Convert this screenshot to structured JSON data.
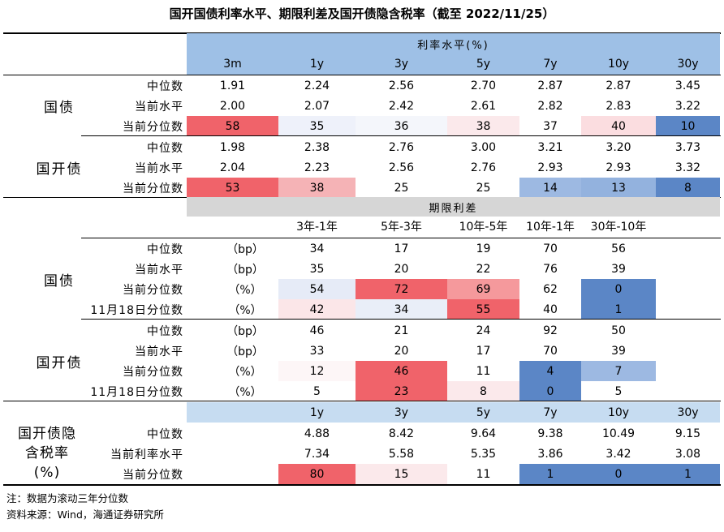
{
  "title": "国开国债利率水平、期限利差及国开债隐含税率（截至 2022/11/25）",
  "colors": {
    "red_strong": "#f0636a",
    "red_mid": "#f5999c",
    "red_light": "#fbdde0",
    "blue_strong": "#5b86c6",
    "blue_mid": "#8fb0de",
    "blue_light": "#dde6f6",
    "header_blue": "#9ec0e6",
    "header_gray": "#d6d6d6"
  },
  "section1": {
    "header": "利率水平(%)",
    "columns": [
      "3m",
      "1y",
      "3y",
      "5y",
      "7y",
      "10y",
      "30y"
    ],
    "groups": [
      {
        "name": "国债",
        "rows": [
          {
            "label": "中位数",
            "values": [
              "1.91",
              "2.24",
              "2.56",
              "2.70",
              "2.87",
              "2.87",
              "3.45"
            ],
            "fills": [
              "",
              "",
              "",
              "",
              "",
              "",
              ""
            ]
          },
          {
            "label": "当前水平",
            "values": [
              "2.00",
              "2.07",
              "2.42",
              "2.61",
              "2.82",
              "2.83",
              "3.22"
            ],
            "fills": [
              "",
              "",
              "",
              "",
              "",
              "",
              ""
            ]
          },
          {
            "label": "当前分位数",
            "values": [
              "58",
              "35",
              "36",
              "38",
              "37",
              "40",
              "10"
            ],
            "fills": [
              "#f0636a",
              "#eef1fa",
              "#f4f6fb",
              "#fbe9eb",
              "#ffffff",
              "#fbdde0",
              "#5b86c6"
            ]
          }
        ]
      },
      {
        "name": "国开债",
        "rows": [
          {
            "label": "中位数",
            "values": [
              "1.98",
              "2.38",
              "2.76",
              "3.00",
              "3.21",
              "3.20",
              "3.73"
            ],
            "fills": [
              "",
              "",
              "",
              "",
              "",
              "",
              ""
            ]
          },
          {
            "label": "当前水平",
            "values": [
              "2.04",
              "2.23",
              "2.56",
              "2.76",
              "2.93",
              "2.93",
              "3.32"
            ],
            "fills": [
              "",
              "",
              "",
              "",
              "",
              "",
              ""
            ]
          },
          {
            "label": "当前分位数",
            "values": [
              "53",
              "38",
              "25",
              "25",
              "14",
              "13",
              "8"
            ],
            "fills": [
              "#f0636a",
              "#f5b3b6",
              "#ffffff",
              "#ffffff",
              "#9db9e2",
              "#93b2de",
              "#5b86c6"
            ]
          }
        ]
      }
    ]
  },
  "section2": {
    "header": "期限利差",
    "columns": [
      "3年-1年",
      "5年-3年",
      "10年-5年",
      "10年-1年",
      "30年-10年"
    ],
    "groups": [
      {
        "name": "国债",
        "rows": [
          {
            "label": "中位数",
            "unit": "（bp）",
            "values": [
              "34",
              "17",
              "19",
              "70",
              "56"
            ],
            "fills": [
              "",
              "",
              "",
              "",
              ""
            ]
          },
          {
            "label": "当前水平",
            "unit": "（bp）",
            "values": [
              "35",
              "20",
              "22",
              "76",
              "39"
            ],
            "fills": [
              "",
              "",
              "",
              "",
              ""
            ]
          },
          {
            "label": "当前分位数",
            "unit": "（%）",
            "values": [
              "54",
              "72",
              "69",
              "62",
              "0"
            ],
            "fills": [
              "#e6ebf7",
              "#f0636a",
              "#f5999c",
              "#ffffff",
              "#5b86c6"
            ]
          },
          {
            "label": "11月18日分位数",
            "unit": "（%）",
            "values": [
              "42",
              "34",
              "55",
              "40",
              "1"
            ],
            "fills": [
              "#fbe6e8",
              "#e9eef8",
              "#f0636a",
              "#ffffff",
              "#5b86c6"
            ]
          }
        ]
      },
      {
        "name": "国开债",
        "rows": [
          {
            "label": "中位数",
            "unit": "（bp）",
            "values": [
              "46",
              "21",
              "24",
              "92",
              "50"
            ],
            "fills": [
              "",
              "",
              "",
              "",
              ""
            ]
          },
          {
            "label": "当前水平",
            "unit": "（bp）",
            "values": [
              "33",
              "20",
              "17",
              "70",
              "39"
            ],
            "fills": [
              "",
              "",
              "",
              "",
              ""
            ]
          },
          {
            "label": "当前分位数",
            "unit": "（%）",
            "values": [
              "12",
              "46",
              "11",
              "4",
              "7"
            ],
            "fills": [
              "#fdf6f7",
              "#f0636a",
              "#ffffff",
              "#5b86c6",
              "#9db9e2"
            ]
          },
          {
            "label": "11月18日分位数",
            "unit": "（%）",
            "values": [
              "5",
              "23",
              "8",
              "0",
              "5"
            ],
            "fills": [
              "#ffffff",
              "#f0636a",
              "#fbe9eb",
              "#5b86c6",
              "#ffffff"
            ]
          }
        ]
      }
    ]
  },
  "section3": {
    "group_name_lines": [
      "国开债隐",
      "含税率",
      "(%)"
    ],
    "columns": [
      "1y",
      "3y",
      "5y",
      "7y",
      "10y",
      "30y"
    ],
    "rows": [
      {
        "label": "中位数",
        "values": [
          "4.88",
          "8.42",
          "9.64",
          "9.38",
          "10.49",
          "9.15"
        ],
        "fills": [
          "",
          "",
          "",
          "",
          "",
          ""
        ]
      },
      {
        "label": "当前利率水平",
        "values": [
          "7.34",
          "5.58",
          "5.35",
          "3.86",
          "3.42",
          "3.08"
        ],
        "fills": [
          "",
          "",
          "",
          "",
          "",
          ""
        ]
      },
      {
        "label": "当前分位数",
        "values": [
          "80",
          "15",
          "11",
          "1",
          "0",
          "1"
        ],
        "fills": [
          "#f0636a",
          "#fbe9eb",
          "#ffffff",
          "#5b86c6",
          "#5b86c6",
          "#5b86c6"
        ]
      }
    ]
  },
  "notes": [
    "注：数据为滚动三年分位数",
    "资料来源：Wind，海通证券研究所"
  ]
}
